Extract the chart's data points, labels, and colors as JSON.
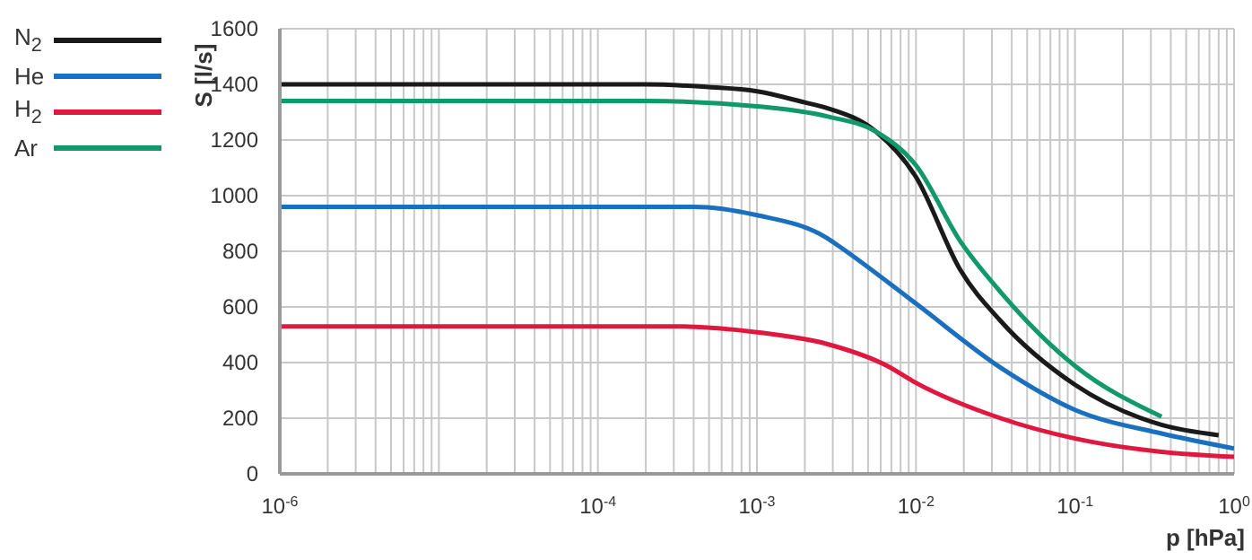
{
  "chart_data": {
    "type": "line",
    "xlabel": "p [hPa]",
    "ylabel": "S [l/s]",
    "log": "x",
    "grid": true,
    "legend": "top left",
    "marker": "none",
    "line_style": "solid",
    "xlim": [
      1e-06,
      1
    ],
    "ylim": [
      0,
      1600
    ],
    "yticks": [
      0,
      200,
      400,
      600,
      800,
      1000,
      1200,
      1400,
      1600
    ],
    "xticks": [
      {
        "value": 1e-06,
        "label": "10$^{-6}$"
      },
      {
        "value": 2e-06,
        "label": null
      },
      {
        "value": 3e-06,
        "label": null
      },
      {
        "value": 4e-06,
        "label": null
      },
      {
        "value": 5e-06,
        "label": null
      },
      {
        "value": 6e-06,
        "label": null
      },
      {
        "value": 7e-06,
        "label": null
      },
      {
        "value": 8e-06,
        "label": null
      },
      {
        "value": 9e-06,
        "label": null
      },
      {
        "value": 1e-05,
        "label": null
      },
      {
        "value": 2e-05,
        "label": null
      },
      {
        "value": 3e-05,
        "label": null
      },
      {
        "value": 4e-05,
        "label": null
      },
      {
        "value": 5e-05,
        "label": null
      },
      {
        "value": 6e-05,
        "label": null
      },
      {
        "value": 7e-05,
        "label": null
      },
      {
        "value": 8e-05,
        "label": null
      },
      {
        "value": 9e-05,
        "label": null
      },
      {
        "value": 0.0001,
        "label": "10$^{-4}$"
      },
      {
        "value": 0.0002,
        "label": null
      },
      {
        "value": 0.0003,
        "label": null
      },
      {
        "value": 0.0004,
        "label": null
      },
      {
        "value": 0.0005,
        "label": null
      },
      {
        "value": 0.0006,
        "label": null
      },
      {
        "value": 0.0007,
        "label": null
      },
      {
        "value": 0.0008,
        "label": null
      },
      {
        "value": 0.0009,
        "label": null
      },
      {
        "value": 0.001,
        "label": "10$^{-3}$"
      },
      {
        "value": 0.002,
        "label": null
      },
      {
        "value": 0.003,
        "label": null
      },
      {
        "value": 0.004,
        "label": null
      },
      {
        "value": 0.005,
        "label": null
      },
      {
        "value": 0.006,
        "label": null
      },
      {
        "value": 0.007,
        "label": null
      },
      {
        "value": 0.008,
        "label": null
      },
      {
        "value": 0.009,
        "label": null
      },
      {
        "value": 0.01,
        "label": "10$^{-2}$"
      },
      {
        "value": 0.02,
        "label": null
      },
      {
        "value": 0.03,
        "label": null
      },
      {
        "value": 0.04,
        "label": null
      },
      {
        "value": 0.05,
        "label": null
      },
      {
        "value": 0.06,
        "label": null
      },
      {
        "value": 0.07,
        "label": null
      },
      {
        "value": 0.08,
        "label": null
      },
      {
        "value": 0.09,
        "label": null
      },
      {
        "value": 0.1,
        "label": "10$^{-1}$"
      },
      {
        "value": 0.2,
        "label": null
      },
      {
        "value": 0.3,
        "label": null
      },
      {
        "value": 0.4,
        "label": null
      },
      {
        "value": 0.5,
        "label": null
      },
      {
        "value": 0.6,
        "label": null
      },
      {
        "value": 0.7,
        "label": null
      },
      {
        "value": 0.8,
        "label": null
      },
      {
        "value": 0.9,
        "label": null
      },
      {
        "value": 1,
        "label": "10$^{0}$"
      }
    ],
    "series": [
      {
        "name": "N$_{2}$",
        "color": "#1a1a1a",
        "x": [
          1e-06,
          1e-05,
          0.0001,
          0.0002,
          0.0005,
          0.001,
          0.002,
          0.00275,
          0.0056,
          0.01,
          0.019,
          0.034,
          0.1,
          0.35,
          0.8
        ],
        "values": [
          1400,
          1400,
          1400,
          1400,
          1390,
          1375,
          1335,
          1315,
          1230,
          1067,
          733,
          550,
          320,
          176,
          139
        ]
      },
      {
        "name": "He",
        "color": "#1a6fbf",
        "x": [
          1e-06,
          1e-05,
          0.0001,
          0.0004,
          0.001,
          0.00275,
          0.0034,
          0.01,
          0.034,
          0.1,
          0.35,
          1
        ],
        "values": [
          960,
          960,
          960,
          960,
          930,
          848,
          812,
          612,
          382,
          230,
          145,
          91
        ]
      },
      {
        "name": "H$_{2}$",
        "color": "#e0173f",
        "x": [
          1e-06,
          1e-05,
          0.0001,
          0.0003,
          0.001,
          0.00275,
          0.0066,
          0.01,
          0.034,
          0.1,
          0.35,
          1
        ],
        "values": [
          530,
          530,
          530,
          530,
          509,
          467,
          388,
          327,
          200,
          127,
          79,
          61
        ]
      },
      {
        "name": "Ar",
        "color": "#12996b",
        "x": [
          1e-06,
          1e-05,
          0.0001,
          0.0002,
          0.001,
          0.00275,
          0.0056,
          0.01,
          0.019,
          0.034,
          0.1,
          0.35
        ],
        "values": [
          1340,
          1340,
          1340,
          1340,
          1321,
          1285,
          1230,
          1109,
          836,
          654,
          388,
          206
        ]
      }
    ]
  }
}
